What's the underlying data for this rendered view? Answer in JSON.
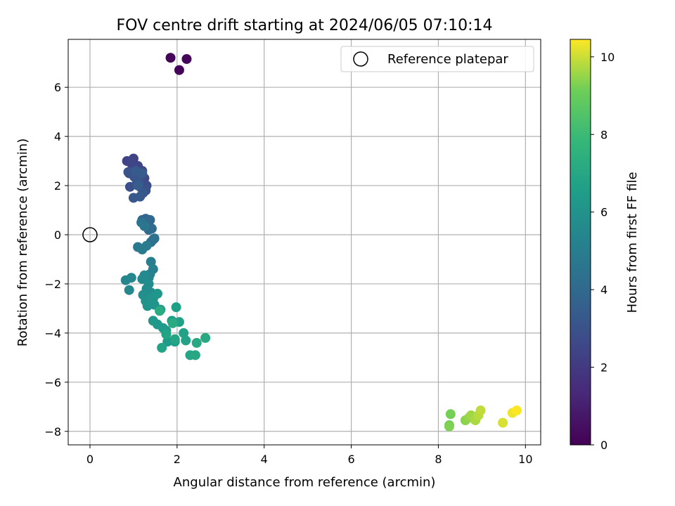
{
  "chart_data": {
    "type": "scatter",
    "title": "FOV centre drift starting at 2024/06/05 07:10:14",
    "xlabel": "Angular distance from reference (arcmin)",
    "ylabel": "Rotation from reference (arcmin)",
    "xlim": [
      -0.5,
      10.35
    ],
    "ylim": [
      -8.55,
      7.95
    ],
    "xticks": [
      0,
      2,
      4,
      6,
      8,
      10
    ],
    "yticks": [
      -8,
      -6,
      -4,
      -2,
      0,
      2,
      4,
      6
    ],
    "grid": true,
    "legend": {
      "placement": "top-right",
      "entries": [
        "Reference platepar"
      ]
    },
    "reference_point": {
      "label": "Reference platepar",
      "x": 0,
      "y": 0
    },
    "colorbar": {
      "label": "Hours from first FF file",
      "colormap": "viridis",
      "range": [
        0,
        10.45
      ],
      "ticks": [
        0,
        2,
        4,
        6,
        8,
        10
      ]
    },
    "series": [
      {
        "x": [
          1.85,
          2.05,
          2.22,
          0.85,
          1.0,
          0.95,
          1.1,
          1.2,
          1.25,
          0.9,
          1.05,
          1.15,
          1.3,
          0.92,
          1.08,
          1.18,
          1.28,
          0.88,
          1.02,
          1.12,
          1.22,
          1.0,
          1.15,
          1.05,
          1.2,
          1.1,
          1.2,
          1.28,
          1.38,
          1.35,
          1.42,
          1.45,
          1.4,
          1.48,
          1.18,
          1.25,
          1.1,
          1.2,
          1.3,
          1.4,
          1.45,
          1.38,
          1.35,
          0.82,
          0.95,
          0.9,
          1.2,
          1.25,
          1.3,
          1.35,
          1.4,
          1.45,
          1.22,
          1.28,
          1.32,
          1.38,
          1.42,
          1.48,
          1.55,
          1.62,
          1.45,
          1.55,
          1.68,
          1.75,
          1.78,
          1.88,
          1.95,
          1.98,
          2.05,
          2.15,
          2.2,
          1.65,
          1.75,
          1.95,
          2.3,
          2.42,
          2.45,
          2.65,
          1.9,
          1.6,
          8.25,
          8.28,
          8.25,
          8.62,
          8.7,
          8.75,
          8.85,
          8.92,
          8.97,
          9.48,
          9.7,
          9.8
        ],
        "y": [
          7.2,
          6.7,
          7.15,
          3.0,
          3.1,
          2.9,
          2.8,
          2.6,
          2.3,
          2.5,
          2.4,
          2.2,
          2.0,
          1.95,
          2.1,
          1.9,
          1.8,
          2.55,
          2.35,
          2.15,
          1.7,
          1.5,
          1.55,
          2.6,
          2.5,
          2.0,
          0.6,
          0.65,
          0.6,
          0.2,
          0.25,
          -0.2,
          -0.3,
          -0.15,
          0.5,
          0.35,
          -0.5,
          -0.6,
          -0.45,
          -1.1,
          -1.4,
          -1.6,
          -1.75,
          -1.85,
          -1.75,
          -2.25,
          -1.8,
          -1.65,
          -2.2,
          -2.0,
          -2.35,
          -2.6,
          -2.45,
          -2.7,
          -2.9,
          -2.8,
          -2.55,
          -2.85,
          -2.4,
          -3.05,
          -3.5,
          -3.65,
          -3.8,
          -3.9,
          -4.35,
          -3.5,
          -4.35,
          -2.95,
          -3.55,
          -4.0,
          -4.3,
          -4.6,
          -4.05,
          -4.25,
          -4.9,
          -4.9,
          -4.4,
          -4.2,
          -3.6,
          -3.1,
          -7.75,
          -7.3,
          -7.8,
          -7.55,
          -7.45,
          -7.35,
          -7.55,
          -7.35,
          -7.15,
          -7.65,
          -7.25,
          -7.15
        ],
        "hours": [
          0.1,
          0.15,
          0.2,
          2.35,
          2.4,
          2.45,
          2.5,
          2.55,
          2.6,
          2.65,
          2.7,
          2.75,
          2.8,
          2.85,
          2.9,
          2.95,
          3.0,
          3.05,
          3.1,
          3.15,
          3.2,
          3.25,
          3.3,
          3.35,
          3.4,
          3.45,
          3.7,
          3.8,
          3.9,
          4.0,
          4.1,
          4.2,
          4.3,
          4.4,
          4.5,
          4.6,
          4.7,
          4.8,
          4.9,
          5.0,
          5.1,
          5.2,
          5.3,
          5.4,
          5.45,
          5.5,
          5.55,
          5.6,
          5.65,
          5.7,
          5.75,
          5.8,
          5.85,
          5.9,
          5.95,
          6.0,
          6.05,
          6.1,
          6.15,
          6.2,
          6.25,
          6.3,
          6.35,
          6.4,
          6.45,
          6.5,
          6.55,
          6.6,
          6.65,
          6.7,
          6.75,
          6.8,
          6.85,
          6.9,
          6.95,
          7.0,
          7.05,
          7.1,
          7.15,
          7.2,
          9.1,
          9.2,
          9.3,
          9.4,
          9.5,
          9.6,
          9.7,
          9.8,
          9.9,
          10.1,
          10.3,
          10.45
        ]
      }
    ]
  }
}
